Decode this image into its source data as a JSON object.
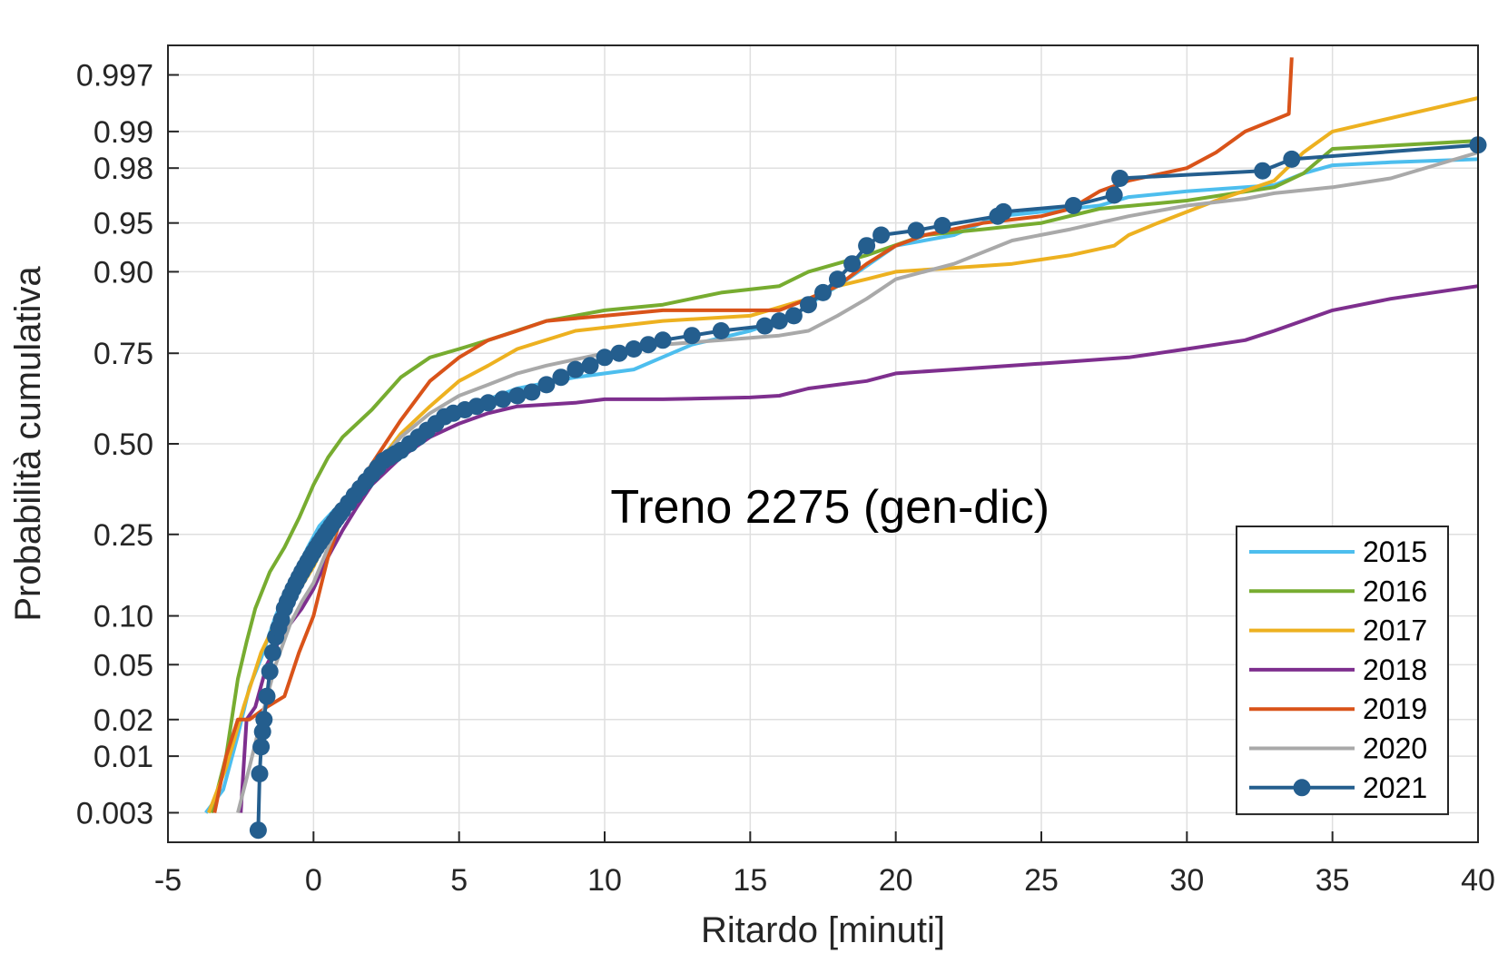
{
  "chart_data": {
    "type": "line",
    "title": "",
    "annotation": "Treno 2275 (gen-dic)",
    "xlabel": "Ritardo [minuti]",
    "ylabel": "Probabilità cumulativa",
    "xlim": [
      -5,
      40
    ],
    "x_ticks": [
      -5,
      0,
      5,
      10,
      15,
      20,
      25,
      30,
      35,
      40
    ],
    "x_tick_labels": [
      "-5",
      "0",
      "5",
      "10",
      "15",
      "20",
      "25",
      "30",
      "35",
      "40"
    ],
    "y_scale": "normal-probability",
    "ylim": [
      0.0015,
      0.9985
    ],
    "y_ticks": [
      0.003,
      0.01,
      0.02,
      0.05,
      0.1,
      0.25,
      0.5,
      0.75,
      0.9,
      0.95,
      0.98,
      0.99,
      0.997
    ],
    "y_tick_labels": [
      "0.003",
      "0.01",
      "0.02",
      "0.05",
      "0.10",
      "0.25",
      "0.50",
      "0.75",
      "0.90",
      "0.95",
      "0.98",
      "0.99",
      "0.997"
    ],
    "grid": true,
    "legend_position": "bottom-right",
    "series": [
      {
        "name": "2015",
        "color": "#4DBEEE",
        "marker": "none",
        "x": [
          -3.7,
          -3.1,
          -2.6,
          -2.2,
          -1.8,
          -1.3,
          -0.8,
          -0.2,
          0.2,
          0.7,
          1.3,
          2.0,
          3.0,
          4.0,
          5.0,
          6.0,
          7.0,
          9.0,
          11.0,
          13.0,
          15.0,
          16.5,
          17.0,
          18.0,
          20.0,
          22.0,
          23.5,
          25.0,
          27.0,
          28.0,
          30.0,
          33.0,
          34.0,
          35.0,
          37.0,
          40.0
        ],
        "y": [
          0.003,
          0.005,
          0.015,
          0.035,
          0.055,
          0.1,
          0.15,
          0.22,
          0.27,
          0.31,
          0.35,
          0.41,
          0.48,
          0.55,
          0.6,
          0.63,
          0.66,
          0.69,
          0.71,
          0.77,
          0.8,
          0.83,
          0.85,
          0.88,
          0.93,
          0.94,
          0.955,
          0.958,
          0.962,
          0.967,
          0.97,
          0.973,
          0.978,
          0.981,
          0.982,
          0.983
        ]
      },
      {
        "name": "2016",
        "color": "#77AC30",
        "marker": "none",
        "x": [
          -3.5,
          -3.0,
          -2.6,
          -2.3,
          -2.0,
          -1.5,
          -1.0,
          -0.5,
          0.0,
          0.5,
          1.0,
          2.0,
          3.0,
          4.0,
          5.0,
          6.0,
          8.0,
          10.0,
          12.0,
          14.0,
          16.0,
          17.0,
          19.0,
          21.0,
          23.0,
          25.0,
          27.0,
          30.0,
          33.0,
          34.0,
          35.0,
          40.0
        ],
        "y": [
          0.003,
          0.01,
          0.04,
          0.07,
          0.11,
          0.17,
          0.22,
          0.29,
          0.38,
          0.46,
          0.52,
          0.6,
          0.69,
          0.74,
          0.76,
          0.78,
          0.82,
          0.84,
          0.85,
          0.87,
          0.88,
          0.9,
          0.92,
          0.94,
          0.945,
          0.95,
          0.96,
          0.965,
          0.972,
          0.978,
          0.986,
          0.988
        ]
      },
      {
        "name": "2017",
        "color": "#EDB120",
        "marker": "none",
        "x": [
          -3.6,
          -3.0,
          -2.4,
          -1.8,
          -1.2,
          -0.6,
          0.0,
          0.6,
          1.2,
          2.0,
          3.0,
          4.0,
          5.0,
          6.0,
          7.0,
          9.0,
          12.0,
          15.0,
          17.0,
          18.0,
          19.0,
          20.0,
          22.0,
          24.0,
          26.0,
          27.5,
          28.0,
          29.0,
          31.0,
          33.0,
          34.0,
          35.0,
          40.0
        ],
        "y": [
          0.003,
          0.008,
          0.025,
          0.06,
          0.1,
          0.13,
          0.18,
          0.26,
          0.33,
          0.42,
          0.53,
          0.61,
          0.68,
          0.72,
          0.76,
          0.8,
          0.82,
          0.83,
          0.86,
          0.88,
          0.89,
          0.9,
          0.905,
          0.91,
          0.92,
          0.93,
          0.94,
          0.95,
          0.965,
          0.975,
          0.985,
          0.99,
          0.995
        ]
      },
      {
        "name": "2018",
        "color": "#7E2F8E",
        "marker": "none",
        "x": [
          -2.5,
          -2.3,
          -2.0,
          -1.6,
          -1.2,
          -0.8,
          -0.4,
          0.0,
          0.5,
          1.0,
          1.5,
          2.0,
          3.0,
          4.0,
          5.0,
          6.0,
          7.0,
          9.0,
          10.0,
          12.0,
          15.0,
          16.0,
          17.0,
          18.0,
          19.0,
          20.0,
          22.0,
          24.0,
          26.0,
          28.0,
          29.0,
          30.0,
          32.0,
          33.0,
          35.0,
          37.0,
          40.0
        ],
        "y": [
          0.003,
          0.02,
          0.025,
          0.05,
          0.07,
          0.09,
          0.11,
          0.14,
          0.2,
          0.26,
          0.32,
          0.38,
          0.46,
          0.52,
          0.56,
          0.59,
          0.61,
          0.62,
          0.63,
          0.63,
          0.635,
          0.64,
          0.66,
          0.67,
          0.68,
          0.7,
          0.71,
          0.72,
          0.73,
          0.74,
          0.75,
          0.76,
          0.78,
          0.8,
          0.84,
          0.86,
          0.88
        ]
      },
      {
        "name": "2019",
        "color": "#D95319",
        "marker": "none",
        "x": [
          -3.4,
          -3.0,
          -2.6,
          -2.2,
          -1.6,
          -1.0,
          -0.5,
          0.0,
          0.5,
          1.0,
          2.0,
          3.0,
          4.0,
          5.0,
          6.0,
          7.0,
          8.0,
          10.0,
          12.0,
          14.0,
          16.0,
          17.0,
          18.0,
          19.0,
          20.0,
          21.0,
          23.0,
          25.0,
          26.0,
          27.0,
          28.0,
          30.0,
          31.0,
          32.0,
          33.5,
          33.6
        ],
        "y": [
          0.003,
          0.01,
          0.02,
          0.02,
          0.025,
          0.03,
          0.06,
          0.1,
          0.2,
          0.3,
          0.44,
          0.57,
          0.68,
          0.74,
          0.78,
          0.8,
          0.82,
          0.83,
          0.84,
          0.84,
          0.84,
          0.86,
          0.88,
          0.91,
          0.93,
          0.94,
          0.95,
          0.955,
          0.96,
          0.97,
          0.975,
          0.98,
          0.985,
          0.99,
          0.993,
          0.998
        ]
      },
      {
        "name": "2020",
        "color": "#A9A9A9",
        "marker": "none",
        "x": [
          -2.6,
          -2.2,
          -1.8,
          -1.3,
          -0.8,
          -0.4,
          0.0,
          0.5,
          1.0,
          2.0,
          3.0,
          4.0,
          5.0,
          6.0,
          7.0,
          8.0,
          10.0,
          12.0,
          14.0,
          16.0,
          17.0,
          18.0,
          19.0,
          20.0,
          22.0,
          24.0,
          26.0,
          28.0,
          30.0,
          32.0,
          33.0,
          35.0,
          37.0,
          40.0
        ],
        "y": [
          0.003,
          0.008,
          0.02,
          0.05,
          0.09,
          0.12,
          0.15,
          0.22,
          0.3,
          0.42,
          0.52,
          0.59,
          0.64,
          0.67,
          0.7,
          0.72,
          0.75,
          0.77,
          0.78,
          0.79,
          0.8,
          0.83,
          0.86,
          0.89,
          0.91,
          0.935,
          0.945,
          0.955,
          0.962,
          0.966,
          0.969,
          0.972,
          0.976,
          0.985
        ]
      },
      {
        "name": "2021",
        "color": "#245E8E",
        "marker": "circle",
        "x": [
          -1.9,
          -1.85,
          -1.8,
          -1.75,
          -1.7,
          -1.6,
          -1.5,
          -1.4,
          -1.3,
          -1.2,
          -1.1,
          -1.0,
          -0.9,
          -0.8,
          -0.7,
          -0.6,
          -0.5,
          -0.4,
          -0.3,
          -0.2,
          -0.1,
          0.0,
          0.1,
          0.2,
          0.3,
          0.4,
          0.5,
          0.6,
          0.7,
          0.8,
          0.9,
          1.0,
          1.2,
          1.4,
          1.6,
          1.8,
          2.0,
          2.2,
          2.4,
          2.6,
          2.8,
          3.0,
          3.3,
          3.6,
          3.9,
          4.2,
          4.5,
          4.8,
          5.2,
          5.6,
          6.0,
          6.5,
          7.0,
          7.5,
          8.0,
          8.5,
          9.0,
          9.5,
          10.0,
          10.5,
          11.0,
          11.5,
          12.0,
          13.0,
          14.0,
          15.5,
          16.0,
          16.5,
          17.0,
          17.5,
          18.0,
          18.5,
          19.0,
          19.5,
          20.7,
          21.6,
          23.5,
          23.7,
          26.1,
          27.5,
          27.7,
          32.6,
          33.6,
          40.0
        ],
        "y": [
          0.002,
          0.007,
          0.012,
          0.016,
          0.02,
          0.03,
          0.045,
          0.06,
          0.075,
          0.085,
          0.095,
          0.11,
          0.12,
          0.13,
          0.14,
          0.15,
          0.16,
          0.17,
          0.18,
          0.19,
          0.2,
          0.21,
          0.22,
          0.23,
          0.24,
          0.25,
          0.26,
          0.27,
          0.28,
          0.29,
          0.3,
          0.31,
          0.33,
          0.35,
          0.37,
          0.39,
          0.41,
          0.43,
          0.45,
          0.46,
          0.47,
          0.48,
          0.5,
          0.52,
          0.54,
          0.56,
          0.58,
          0.59,
          0.6,
          0.61,
          0.62,
          0.63,
          0.64,
          0.65,
          0.67,
          0.69,
          0.71,
          0.72,
          0.74,
          0.75,
          0.76,
          0.77,
          0.78,
          0.79,
          0.8,
          0.81,
          0.82,
          0.83,
          0.85,
          0.87,
          0.89,
          0.91,
          0.93,
          0.94,
          0.944,
          0.948,
          0.955,
          0.958,
          0.962,
          0.968,
          0.976,
          0.979,
          0.983,
          0.987
        ]
      }
    ]
  }
}
